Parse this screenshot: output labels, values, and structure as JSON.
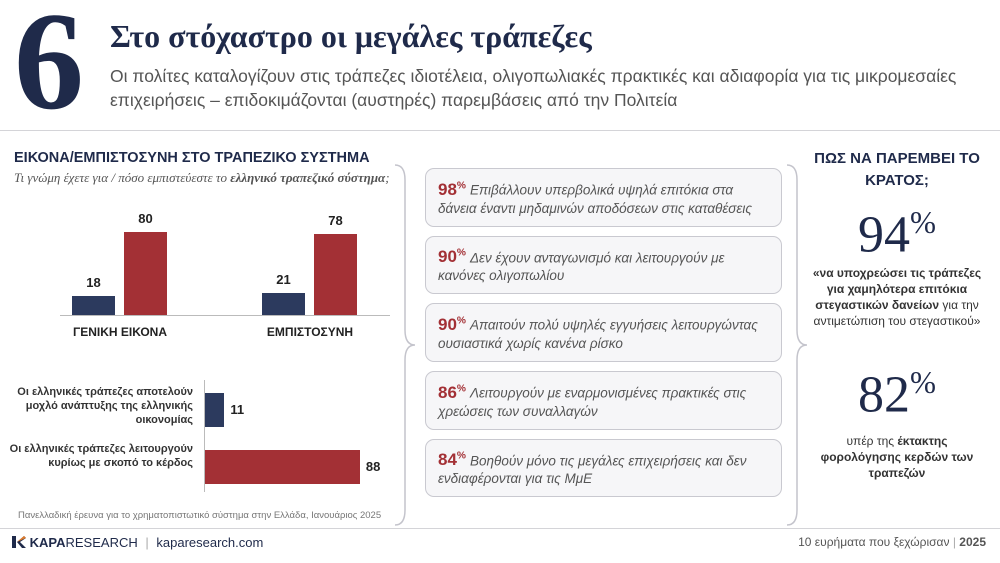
{
  "header": {
    "number": "6",
    "title": "Στο στόχαστρο οι μεγάλες τράπεζες",
    "subtitle": "Οι πολίτες καταλογίζουν στις τράπεζες ιδιοτέλεια, ολιγοπωλιακές πρακτικές και αδιαφορία για τις μικρομεσαίες επιχειρήσεις – επιδοκιμάζονται (αυστηρές) παρεμβάσεις από την Πολιτεία"
  },
  "chart_data": [
    {
      "type": "bar",
      "title": "ΕΙΚΟΝΑ/ΕΜΠΙΣΤΟΣΥΝΗ ΣΤΟ ΤΡΑΠΕΖΙΚΟ ΣΥΣΤΗΜΑ",
      "subtitle": [
        "Τι γνώμη έχετε για / πόσο εμπιστεύεστε το ",
        "ελληνικό τραπεζικό σύστημα",
        ";"
      ],
      "categories": [
        "ΓΕΝΙΚΗ ΕΙΚΟΝΑ",
        "ΕΜΠΙΣΤΟΣΥΝΗ"
      ],
      "series": [
        {
          "color": "#2c3a5e",
          "values": [
            18,
            21
          ]
        },
        {
          "color": "#a33035",
          "values": [
            80,
            78
          ]
        }
      ]
    },
    {
      "type": "hbar",
      "categories": [
        "Οι ελληνικές τράπεζες αποτελούν μοχλό ανάπτυξης της ελληνικής οικονομίας",
        "Οι ελληνικές τράπεζες λειτουργούν κυρίως με σκοπό το κέρδος"
      ],
      "values": [
        11,
        88
      ],
      "colors": [
        "#2c3a5e",
        "#a33035"
      ]
    }
  ],
  "findings": [
    {
      "value": 98,
      "unit": "%",
      "text": "Επιβάλλουν υπερβολικά υψηλά επιτόκια στα δάνεια έναντι μηδαμινών αποδόσεων στις καταθέσεις"
    },
    {
      "value": 90,
      "unit": "%",
      "text": "Δεν έχουν ανταγωνισμό και λειτουργούν με κανόνες ολιγοπωλίου"
    },
    {
      "value": 90,
      "unit": "%",
      "text": "Απαιτούν πολύ υψηλές εγγυήσεις λειτουργώντας ουσιαστικά χωρίς κανένα ρίσκο"
    },
    {
      "value": 86,
      "unit": "%",
      "text": "Λειτουργούν με εναρμονισμένες πρακτικές στις χρεώσεις των συναλλαγών"
    },
    {
      "value": 84,
      "unit": "%",
      "text": "Βοηθούν μόνο τις μεγάλες επιχειρήσεις και δεν ενδιαφέρονται για τις ΜμΕ"
    }
  ],
  "policy": {
    "title": "ΠΩΣ ΝΑ ΠΑΡΕΜΒΕΙ ΤΟ ΚΡΑΤΟΣ;",
    "items": [
      {
        "value": 94,
        "unit": "%",
        "text": [
          "«να υποχρεώσει τις τράπεζες για χαμηλότερα επιτόκια στεγαστικών δανείων",
          " για την αντιμετώπιση του στεγαστικού»"
        ]
      },
      {
        "value": 82,
        "unit": "%",
        "text": [
          "υπέρ της ",
          "έκτακτης φορολόγησης κερδών των τραπεζών"
        ]
      }
    ]
  },
  "footnote": "Πανελλαδική έρευνα για το χρηματοπιστωτικό σύστημα στην Ελλάδα, Ιανουάριος 2025",
  "footer": {
    "brand_bold": "KAPA",
    "brand": "RESEARCH",
    "site": "kaparesearch.com",
    "tagline": "10 ευρήματα που ξεχώρισαν",
    "year": "2025"
  }
}
